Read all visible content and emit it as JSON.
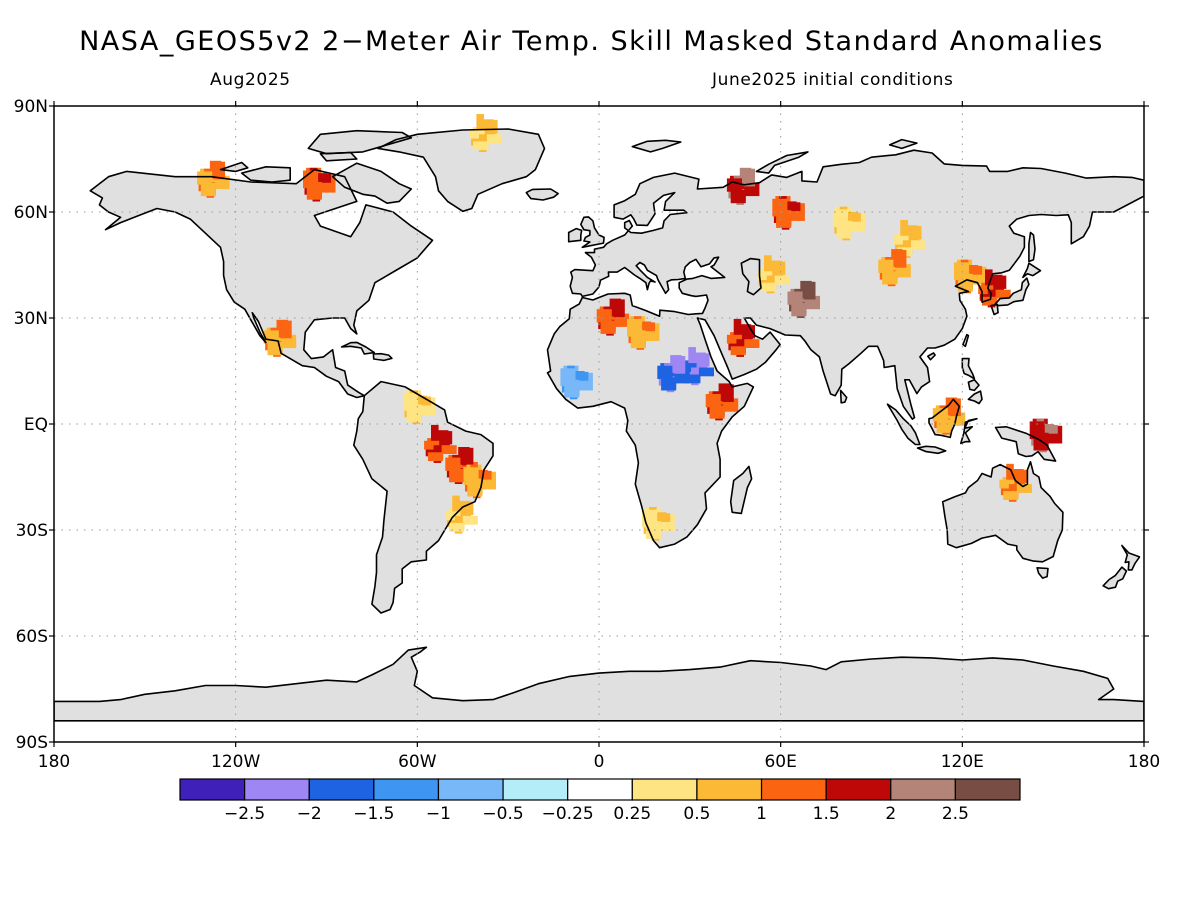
{
  "header": {
    "title": "NASA_GEOS5v2 2−Meter Air Temp. Skill Masked Standard Anomalies",
    "valid_month": "Aug2025",
    "initial_conditions": "June2025 initial conditions"
  },
  "map": {
    "projection": "equirectangular",
    "lon_range": [
      -180,
      180
    ],
    "lat_range": [
      -90,
      90
    ],
    "land_color": "#e0e0e0",
    "ocean_color": "#ffffff",
    "grid": "dotted",
    "lat_labels": [
      "90N",
      "60N",
      "30N",
      "EQ",
      "30S",
      "60S",
      "90S"
    ],
    "lon_labels": [
      "180",
      "120W",
      "60W",
      "0",
      "60E",
      "120E",
      "180"
    ]
  },
  "colorbar": {
    "colors": [
      "#3f20b8",
      "#9e86f5",
      "#1e64e2",
      "#3e96f2",
      "#78b8f8",
      "#b4ecf8",
      "#ffffff",
      "#fee482",
      "#fbb935",
      "#fb6411",
      "#be0808",
      "#b48478",
      "#784d44"
    ],
    "tick_labels": [
      "−2.5",
      "−2",
      "−1.5",
      "−1",
      "−0.5",
      "−0.25",
      "0.25",
      "0.5",
      "1",
      "1.5",
      "2",
      "2.5"
    ]
  },
  "anomaly_regions": [
    {
      "lon": -130,
      "lat": 67,
      "level": 1.2
    },
    {
      "lon": -95,
      "lat": 66,
      "level": 1.8
    },
    {
      "lon": -40,
      "lat": 80,
      "level": 0.7
    },
    {
      "lon": -108,
      "lat": 22,
      "level": 1.2
    },
    {
      "lon": -62,
      "lat": 3,
      "level": 0.8
    },
    {
      "lon": -55,
      "lat": -8,
      "level": 1.6
    },
    {
      "lon": -48,
      "lat": -14,
      "level": 1.8
    },
    {
      "lon": -42,
      "lat": -18,
      "level": 1.3
    },
    {
      "lon": -48,
      "lat": -28,
      "level": 0.7
    },
    {
      "lon": 2,
      "lat": 28,
      "level": 1.9
    },
    {
      "lon": 12,
      "lat": 24,
      "level": 1.4
    },
    {
      "lon": 30,
      "lat": 14,
      "level": -2.4
    },
    {
      "lon": 22,
      "lat": 12,
      "level": -2.1
    },
    {
      "lon": -10,
      "lat": 10,
      "level": -1.2
    },
    {
      "lon": 45,
      "lat": 22,
      "level": 1.6
    },
    {
      "lon": 38,
      "lat": 4,
      "level": 1.7
    },
    {
      "lon": 17,
      "lat": -30,
      "level": 0.7
    },
    {
      "lon": 55,
      "lat": 40,
      "level": 0.7
    },
    {
      "lon": 65,
      "lat": 33,
      "level": 2.8
    },
    {
      "lon": 80,
      "lat": 55,
      "level": 0.6
    },
    {
      "lon": 100,
      "lat": 50,
      "level": 0.8
    },
    {
      "lon": 95,
      "lat": 42,
      "level": 1.3
    },
    {
      "lon": 120,
      "lat": 40,
      "level": 1.2
    },
    {
      "lon": 128,
      "lat": 36,
      "level": 1.6
    },
    {
      "lon": 113,
      "lat": 0,
      "level": 1.3
    },
    {
      "lon": 145,
      "lat": -5,
      "level": 2.2
    },
    {
      "lon": 135,
      "lat": -19,
      "level": 1.4
    },
    {
      "lon": 45,
      "lat": 65,
      "level": 2.2
    },
    {
      "lon": 60,
      "lat": 58,
      "level": 1.6
    }
  ]
}
